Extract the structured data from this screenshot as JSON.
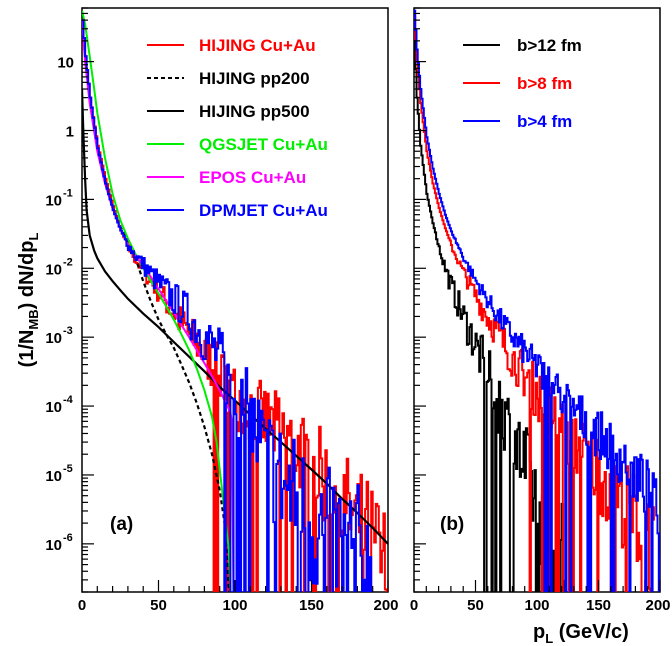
{
  "chart_data": [
    {
      "panel": "(a)",
      "type": "line",
      "y_scale": "log",
      "xlim": [
        0,
        200
      ],
      "ylim": [
        2e-07,
        60
      ],
      "x_ticks": [
        "0",
        "50",
        "100",
        "150",
        "200"
      ],
      "y_ticks": [
        {
          "base": "10",
          "exp": "",
          "value": 10
        },
        {
          "base": "1",
          "exp": "",
          "value": 1
        },
        {
          "base": "10",
          "exp": "-1",
          "value": 0.1
        },
        {
          "base": "10",
          "exp": "-2",
          "value": 0.01
        },
        {
          "base": "10",
          "exp": "-3",
          "value": 0.001
        },
        {
          "base": "10",
          "exp": "-4",
          "value": 0.0001
        },
        {
          "base": "10",
          "exp": "-5",
          "value": 1e-05
        },
        {
          "base": "10",
          "exp": "-6",
          "value": 1e-06
        }
      ],
      "ylabel": {
        "pre": "(1/N",
        "sub1": "MB",
        "mid": ") dN/dp",
        "sub2": "L"
      },
      "legend_position": "top-right",
      "series": [
        {
          "name": "HIJING Cu+Au",
          "color": "#ff0000",
          "style": "solid",
          "noise": 0.35,
          "x": [
            0,
            2,
            5,
            10,
            15,
            20,
            25,
            30,
            35,
            40,
            50,
            60,
            70,
            80,
            90,
            100,
            110,
            120,
            130,
            140,
            150,
            160,
            170,
            180,
            190,
            199
          ],
          "y": [
            40,
            12,
            3,
            0.6,
            0.2,
            0.08,
            0.035,
            0.02,
            0.013,
            0.009,
            0.0045,
            0.0022,
            0.0011,
            0.00055,
            0.00028,
            0.00014,
            9e-05,
            6e-05,
            4e-05,
            2.5e-05,
            1.4e-05,
            8e-06,
            4e-06,
            2e-06,
            1e-06,
            4e-07
          ]
        },
        {
          "name": "HIJING pp200",
          "color": "#000000",
          "style": "dashed",
          "noise": 0,
          "x": [
            0,
            2,
            5,
            10,
            15,
            20,
            25,
            30,
            35,
            40,
            45,
            50,
            55,
            60,
            65,
            70,
            75,
            80,
            85,
            90,
            94,
            96
          ],
          "y": [
            40,
            12,
            3,
            0.55,
            0.18,
            0.075,
            0.04,
            0.025,
            0.014,
            0.0065,
            0.0033,
            0.0018,
            0.0011,
            0.0007,
            0.0004,
            0.00022,
            0.00011,
            5e-05,
            2e-05,
            6e-06,
            1.5e-06,
            2e-07
          ]
        },
        {
          "name": "HIJING pp500",
          "color": "#000000",
          "style": "solid",
          "noise": 0,
          "x": [
            0,
            1,
            2,
            3,
            5,
            8,
            10,
            15,
            20,
            25,
            30,
            40,
            50,
            60,
            70,
            80,
            90,
            100,
            110,
            120,
            130,
            140,
            150,
            160,
            170,
            180,
            190,
            200
          ],
          "y": [
            4,
            0.8,
            0.2,
            0.07,
            0.03,
            0.018,
            0.014,
            0.009,
            0.0065,
            0.0048,
            0.0036,
            0.0022,
            0.0014,
            0.00085,
            0.00052,
            0.00032,
            0.00019,
            0.00012,
            7.5e-05,
            4.7e-05,
            3e-05,
            1.9e-05,
            1.2e-05,
            7.5e-06,
            4.5e-06,
            2.8e-06,
            1.7e-06,
            1e-06
          ]
        },
        {
          "name": "QGSJET Cu+Au",
          "color": "#00ee00",
          "style": "solid",
          "noise": 0,
          "x": [
            0,
            2,
            5,
            8,
            10,
            15,
            20,
            25,
            30,
            35,
            40,
            45,
            50,
            55,
            60,
            65,
            70,
            75,
            80,
            85,
            88,
            90,
            92,
            94,
            96,
            97
          ],
          "y": [
            55,
            35,
            12,
            4,
            1.8,
            0.4,
            0.12,
            0.05,
            0.027,
            0.016,
            0.01,
            0.0065,
            0.0043,
            0.0028,
            0.0018,
            0.0011,
            0.00065,
            0.00035,
            0.00017,
            7e-05,
            3e-05,
            1.2e-05,
            5e-06,
            2e-06,
            8e-07,
            2e-07
          ]
        },
        {
          "name": "EPOS Cu+Au",
          "color": "#ff00ff",
          "style": "solid",
          "noise": 0,
          "x": [
            0,
            2,
            5,
            10,
            15,
            20,
            25,
            30,
            35,
            40,
            45,
            50,
            55,
            60,
            65,
            70,
            75,
            80,
            85,
            90,
            95,
            97,
            98,
            99
          ],
          "y": [
            40,
            10,
            2.5,
            0.5,
            0.17,
            0.075,
            0.038,
            0.022,
            0.015,
            0.011,
            0.0075,
            0.005,
            0.0034,
            0.0023,
            0.0015,
            0.001,
            0.00065,
            0.00042,
            0.00027,
            0.00017,
            0.0001,
            8e-05,
            6e-05,
            2e-07
          ]
        },
        {
          "name": "DPMJET Cu+Au",
          "color": "#0000ff",
          "style": "solid",
          "noise": 0.45,
          "x": [
            0,
            2,
            5,
            10,
            15,
            20,
            25,
            30,
            35,
            40,
            45,
            50,
            55,
            60,
            65,
            70,
            75,
            80,
            85,
            90,
            95,
            100,
            105,
            110,
            120,
            130,
            140,
            150,
            160,
            170,
            180,
            190
          ],
          "y": [
            40,
            12,
            3,
            0.55,
            0.17,
            0.07,
            0.035,
            0.021,
            0.015,
            0.011,
            0.008,
            0.006,
            0.0045,
            0.0035,
            0.0027,
            0.002,
            0.0014,
            0.001,
            0.0007,
            0.00045,
            0.00028,
            0.00017,
            0.0001,
            5.5e-05,
            2e-05,
            8e-06,
            4e-06,
            2e-06,
            1.2e-06,
            8e-07,
            5e-07,
            3e-07
          ]
        }
      ]
    },
    {
      "panel": "(b)",
      "type": "line",
      "y_scale": "log",
      "xlim": [
        0,
        200
      ],
      "ylim": [
        2e-07,
        60
      ],
      "x_ticks": [
        "0",
        "50",
        "100",
        "150",
        "200"
      ],
      "xlabel": {
        "main": "p",
        "sub": "L",
        "rest": " (GeV/c)"
      },
      "legend_position": "top-right",
      "series": [
        {
          "name": "b>12 fm",
          "color": "#000000",
          "style": "solid",
          "noise": 0.35,
          "x": [
            0,
            2,
            5,
            10,
            15,
            20,
            25,
            30,
            35,
            40,
            45,
            50,
            55,
            60,
            65,
            70,
            75,
            80,
            85,
            90,
            95,
            100,
            105,
            110,
            115,
            120,
            125
          ],
          "y": [
            20,
            3,
            0.6,
            0.12,
            0.045,
            0.02,
            0.01,
            0.0055,
            0.0032,
            0.0019,
            0.0012,
            0.00075,
            0.00045,
            0.00027,
            0.00016,
            0.0001,
            6e-05,
            3.5e-05,
            2e-05,
            1.2e-05,
            7e-06,
            4e-06,
            2.5e-06,
            1.5e-06,
            9e-07,
            5e-07,
            3e-07
          ]
        },
        {
          "name": "b>8 fm",
          "color": "#ff0000",
          "style": "solid",
          "noise": 0.3,
          "x": [
            0,
            2,
            5,
            10,
            15,
            20,
            25,
            30,
            40,
            50,
            60,
            70,
            80,
            90,
            100,
            110,
            120,
            130,
            140,
            150,
            160,
            170,
            180,
            190,
            195
          ],
          "y": [
            45,
            10,
            2.5,
            0.5,
            0.17,
            0.075,
            0.038,
            0.021,
            0.0085,
            0.0039,
            0.0019,
            0.00095,
            0.0005,
            0.00027,
            0.00015,
            8.5e-05,
            5e-05,
            3e-05,
            1.8e-05,
            1.1e-05,
            6.5e-06,
            3.8e-06,
            2.2e-06,
            1.2e-06,
            6e-07
          ]
        },
        {
          "name": "b>4 fm",
          "color": "#0000ff",
          "style": "solid",
          "noise": 0.22,
          "x": [
            0,
            2,
            5,
            10,
            15,
            20,
            25,
            30,
            40,
            50,
            60,
            70,
            80,
            90,
            100,
            110,
            120,
            130,
            140,
            150,
            160,
            170,
            180,
            190,
            200
          ],
          "y": [
            55,
            15,
            4,
            0.8,
            0.28,
            0.12,
            0.06,
            0.034,
            0.014,
            0.0065,
            0.0033,
            0.0018,
            0.001,
            0.0006,
            0.00036,
            0.00022,
            0.00014,
            9e-05,
            5.8e-05,
            3.8e-05,
            2.5e-05,
            1.6e-05,
            1e-05,
            5.5e-06,
            2e-06
          ]
        }
      ]
    }
  ]
}
